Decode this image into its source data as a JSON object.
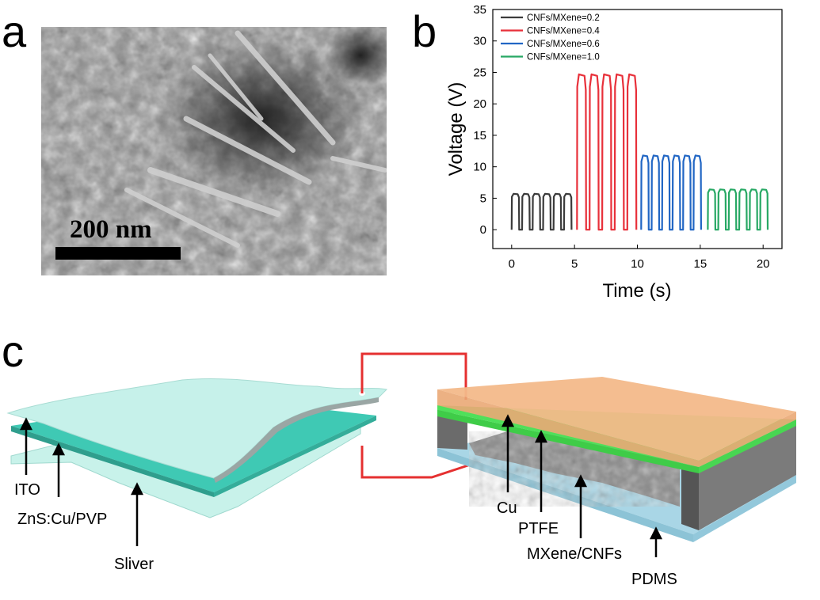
{
  "panels": {
    "a": {
      "letter": "a",
      "scale_bar_label": "200 nm"
    },
    "b": {
      "letter": "b"
    },
    "c": {
      "letter": "c"
    }
  },
  "chart_data": {
    "type": "line",
    "xlabel": "Time (s)",
    "ylabel": "Voltage (V)",
    "xlim": [
      -1.5,
      21.5
    ],
    "ylim": [
      -3,
      35
    ],
    "xticks": [
      "0",
      "5",
      "10",
      "15",
      "20"
    ],
    "yticks": [
      "0",
      "5",
      "10",
      "15",
      "20",
      "25",
      "30",
      "35"
    ],
    "legend_position": "top-left",
    "series": [
      {
        "name": "CNFs/MXene=0.2",
        "color": "#3b3b3b",
        "peak": 5.7,
        "x_start": 0.0,
        "x_end": 5.0,
        "pulses": 6
      },
      {
        "name": "CNFs/MXene=0.4",
        "color": "#e8303a",
        "peak": 24.7,
        "x_start": 5.2,
        "x_end": 10.2,
        "pulses": 5
      },
      {
        "name": "CNFs/MXene=0.6",
        "color": "#2166c4",
        "peak": 11.8,
        "x_start": 10.3,
        "x_end": 15.3,
        "pulses": 6
      },
      {
        "name": "CNFs/MXene=1.0",
        "color": "#27a864",
        "peak": 6.4,
        "x_start": 15.6,
        "x_end": 20.6,
        "pulses": 6
      }
    ]
  },
  "diagram_left": {
    "labels": [
      "ITO",
      "ZnS:Cu/PVP",
      "Sliver"
    ]
  },
  "diagram_right": {
    "labels": [
      "Cu",
      "PTFE",
      "MXene/CNFs",
      "PDMS"
    ]
  },
  "colors": {
    "ito": "#c6f1ea",
    "zns": "#3fc9b4",
    "copper_top": "#f3b98a",
    "ptfe": "#4fe05a",
    "pdms": "#a9d6e6",
    "wire": "#e53030",
    "frame": "#6b6b6b"
  }
}
